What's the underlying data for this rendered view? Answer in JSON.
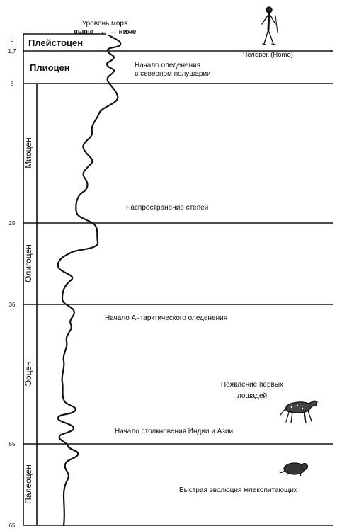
{
  "header": {
    "sea_level_title": "Уровень моря",
    "higher": "выше",
    "lower": "ниже",
    "arrow_left": "←",
    "arrow_right": "→"
  },
  "scale": {
    "ticks": [
      "0",
      "1,7",
      "6",
      "25",
      "36",
      "55",
      "65"
    ]
  },
  "epochs": [
    {
      "name": "Плейстоцен"
    },
    {
      "name": "Плиоцен"
    },
    {
      "name": "Миоцен"
    },
    {
      "name": "Олигоцен"
    },
    {
      "name": "Эоцен"
    },
    {
      "name": "Палеоцен"
    }
  ],
  "events": [
    {
      "text": "Человек (Homo)"
    },
    {
      "lines": [
        "Начало оледенения",
        "в северном полушарии"
      ]
    },
    {
      "text": "Распространение степей"
    },
    {
      "text": "Начало Антарктического оледенения"
    },
    {
      "lines": [
        "Появление первых",
        "лошадей"
      ]
    },
    {
      "text": "Начало столкновения Индии и Азии"
    },
    {
      "text": "Быстрая эволюция млекопитающих"
    }
  ],
  "icons": {
    "human": "human-figure-icon",
    "horse": "early-horse-icon",
    "mammal": "small-mammal-icon"
  }
}
